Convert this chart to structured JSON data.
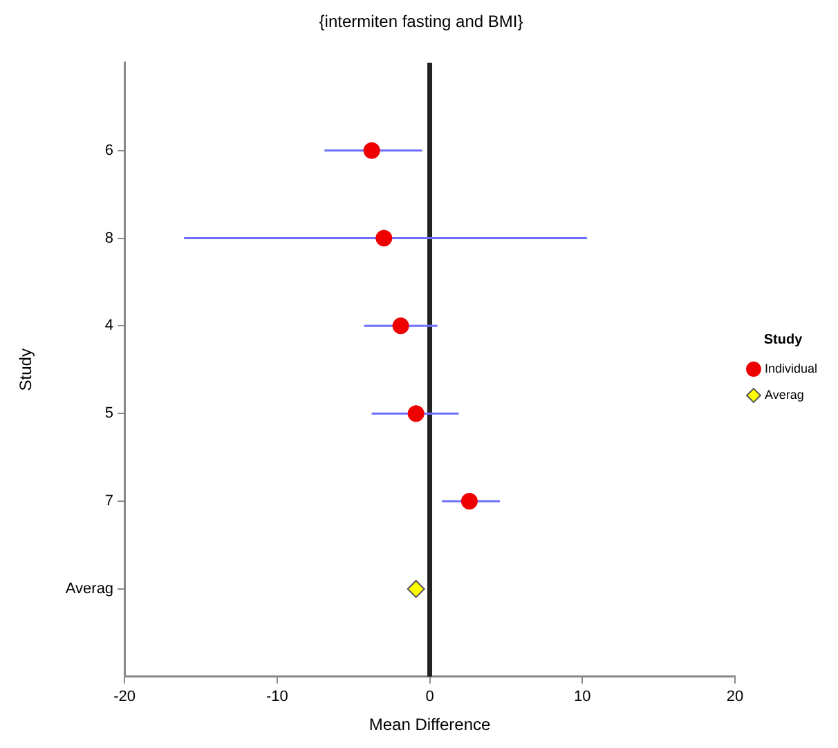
{
  "chart_data": {
    "type": "scatter",
    "title": "{intermiten fasting and BMI}",
    "xlabel": "Mean Difference",
    "ylabel": "Study",
    "legend_title": "Study",
    "orientation": "horizontal",
    "categories": [
      "6",
      "8",
      "4",
      "5",
      "7",
      "Averag"
    ],
    "series": [
      {
        "name": "Individual",
        "color": "#ee0000",
        "marker": "circle",
        "values": [
          -3.8,
          -3.0,
          -1.9,
          -0.9,
          2.6,
          null
        ],
        "errors": [
          [
            -6.9,
            -0.5
          ],
          [
            -16.1,
            10.3
          ],
          [
            -4.3,
            0.5
          ],
          [
            -3.8,
            1.9
          ],
          [
            0.8,
            4.6
          ],
          null
        ]
      },
      {
        "name": "Averag",
        "color": "#ffff00",
        "marker": "diamond",
        "values": [
          null,
          null,
          null,
          null,
          null,
          -0.9
        ]
      }
    ],
    "xlim": [
      -20,
      20
    ],
    "xticks": [
      -20,
      -10,
      0,
      10,
      20
    ],
    "ref_lines": [
      {
        "axis": "x",
        "value": 0,
        "color": "#222222"
      }
    ],
    "grid": false,
    "legend": "right"
  }
}
